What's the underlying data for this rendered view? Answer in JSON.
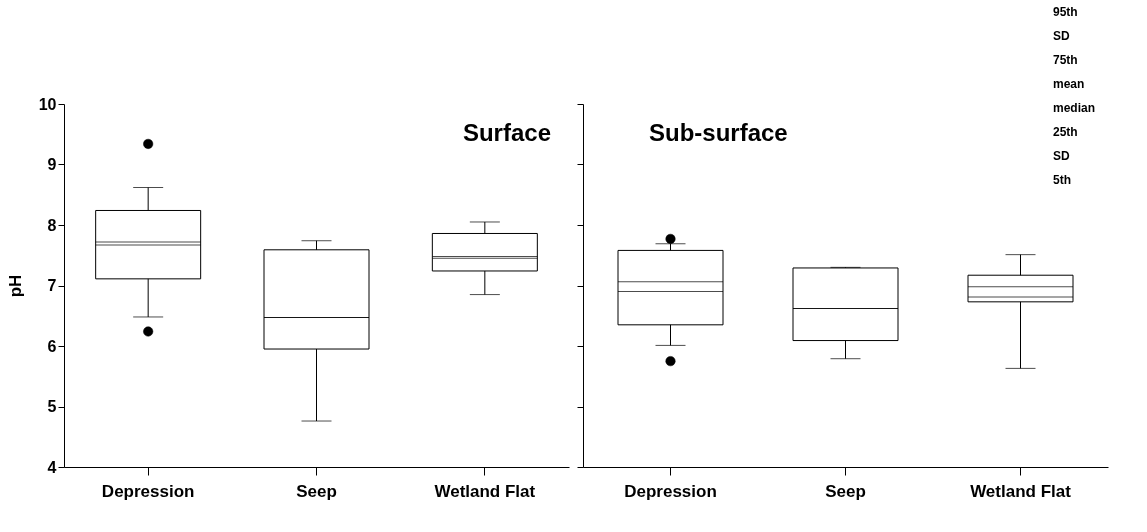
{
  "chart_data": [
    {
      "type": "box",
      "title": "Surface",
      "ylabel": "pH",
      "categories": [
        "Depression",
        "Seep",
        "Wetland Flat"
      ],
      "ylim": [
        4,
        10
      ],
      "yticks": [
        4,
        5,
        6,
        7,
        8,
        9,
        10
      ],
      "grid": false,
      "series": [
        {
          "color": "#000000",
          "boxes": [
            {
              "low": 6.48,
              "q1": 7.11,
              "median": 7.72,
              "q3": 8.24,
              "high": 8.62,
              "mean": 7.67,
              "outliers": [
                9.34,
                6.24
              ]
            },
            {
              "low": 4.76,
              "q1": 5.95,
              "median": 6.47,
              "q3": 7.59,
              "high": 7.74,
              "mean": 6.47
            },
            {
              "low": 6.85,
              "q1": 7.24,
              "median": 7.45,
              "q3": 7.86,
              "high": 8.05,
              "mean": 7.48
            }
          ]
        }
      ]
    },
    {
      "type": "box",
      "title": "Sub-surface",
      "categories": [
        "Depression",
        "Seep",
        "Wetland Flat"
      ],
      "ylim": [
        4,
        10
      ],
      "yticks": [
        4,
        5,
        6,
        7,
        8,
        9,
        10
      ],
      "tick_labels": "x",
      "grid": false,
      "annotations": [
        "95th",
        "SD",
        "75th",
        "mean",
        "median",
        "25th",
        "SD",
        "5th"
      ],
      "series": [
        {
          "color": "#000000",
          "boxes": [
            {
              "low": 6.01,
              "q1": 6.35,
              "median": 7.06,
              "q3": 7.58,
              "high": 7.69,
              "mean": 6.9,
              "outliers": [
                7.77,
                5.75
              ]
            },
            {
              "low": 5.79,
              "q1": 6.09,
              "median": 6.62,
              "q3": 7.29,
              "high": 7.3,
              "mean": 6.62
            },
            {
              "low": 5.63,
              "q1": 6.73,
              "median": 6.98,
              "q3": 7.17,
              "high": 7.51,
              "mean": 6.81
            }
          ]
        }
      ]
    }
  ]
}
